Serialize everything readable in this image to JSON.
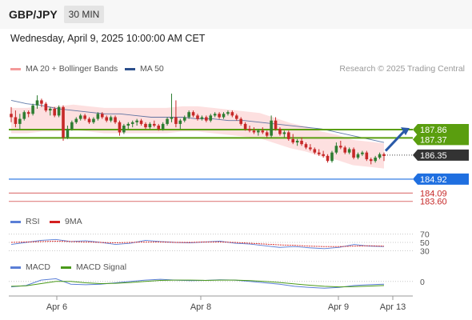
{
  "header": {
    "symbol": "GBP/JPY",
    "timeframe": "30 MIN"
  },
  "datetime": "Wednesday, April 9, 2025 10:00:00 AM CET",
  "legend": {
    "bollinger_label": "MA 20 + Bollinger Bands",
    "ma50_label": "MA 50",
    "rsi_label": "RSI",
    "rsi_ma_label": "9MA",
    "macd_label": "MACD",
    "macd_signal_label": "MACD Signal",
    "copyright": "Research © 2025 Trading Central"
  },
  "colors": {
    "bollinger": "#f49a9a",
    "ma50": "#2c4f8c",
    "candle_up": "#2e7d32",
    "candle_down": "#c62828",
    "resistance": "#5a9e0f",
    "support_blue": "#1f6fe0",
    "support_red": "#e08080",
    "rsi": "#5b7fd6",
    "rsi_ma": "#d42020",
    "macd": "#5b7fd6",
    "macd_signal": "#4a9a1a"
  },
  "chart_data": {
    "type": "candlestick",
    "x_tick_labels": [
      "Apr 6",
      "Apr 8",
      "Apr 9",
      "Apr 13"
    ],
    "price_ylim": [
      183.3,
      191.0
    ],
    "levels": [
      {
        "value": 187.86,
        "label": "187.86",
        "kind": "resistance"
      },
      {
        "value": 187.37,
        "label": "187.37",
        "kind": "resistance"
      },
      {
        "value": 186.35,
        "label": "186.35",
        "kind": "current"
      },
      {
        "value": 184.92,
        "label": "184.92",
        "kind": "support"
      },
      {
        "value": 184.09,
        "label": "184.09",
        "kind": "support"
      },
      {
        "value": 183.6,
        "label": "183.60",
        "kind": "support"
      }
    ],
    "candles": [
      [
        188.8,
        189.2,
        188.3,
        188.6
      ],
      [
        188.6,
        189.0,
        188.0,
        188.2
      ],
      [
        188.2,
        188.8,
        187.9,
        188.5
      ],
      [
        188.5,
        189.0,
        188.4,
        188.9
      ],
      [
        188.9,
        189.0,
        188.6,
        188.8
      ],
      [
        188.8,
        189.4,
        188.7,
        189.3
      ],
      [
        189.3,
        189.9,
        189.1,
        189.6
      ],
      [
        189.6,
        189.7,
        189.2,
        189.4
      ],
      [
        189.4,
        189.5,
        188.9,
        189.0
      ],
      [
        189.0,
        189.2,
        188.7,
        189.1
      ],
      [
        189.1,
        189.2,
        188.6,
        188.7
      ],
      [
        188.7,
        189.3,
        188.6,
        189.2
      ],
      [
        189.2,
        189.3,
        187.2,
        187.4
      ],
      [
        187.4,
        188.1,
        187.3,
        187.9
      ],
      [
        187.9,
        188.4,
        187.8,
        188.3
      ],
      [
        188.3,
        188.6,
        188.2,
        188.5
      ],
      [
        188.5,
        188.8,
        188.4,
        188.7
      ],
      [
        188.7,
        188.8,
        188.4,
        188.5
      ],
      [
        188.5,
        188.6,
        188.2,
        188.3
      ],
      [
        188.3,
        188.6,
        188.2,
        188.5
      ],
      [
        188.5,
        188.9,
        188.4,
        188.8
      ],
      [
        188.8,
        188.9,
        188.5,
        188.6
      ],
      [
        188.6,
        188.7,
        188.3,
        188.4
      ],
      [
        188.4,
        188.7,
        188.3,
        188.6
      ],
      [
        188.6,
        188.7,
        188.2,
        188.3
      ],
      [
        188.3,
        188.4,
        187.5,
        187.7
      ],
      [
        187.7,
        188.2,
        187.6,
        188.1
      ],
      [
        188.1,
        188.3,
        187.9,
        188.2
      ],
      [
        188.2,
        188.4,
        188.0,
        188.3
      ],
      [
        188.3,
        188.5,
        188.1,
        188.4
      ],
      [
        188.4,
        188.5,
        188.1,
        188.2
      ],
      [
        188.2,
        188.3,
        187.9,
        188.0
      ],
      [
        188.0,
        188.3,
        187.9,
        188.2
      ],
      [
        188.2,
        188.4,
        188.0,
        188.1
      ],
      [
        188.1,
        188.2,
        187.8,
        187.9
      ],
      [
        187.9,
        188.3,
        187.8,
        188.2
      ],
      [
        188.2,
        188.6,
        188.1,
        188.5
      ],
      [
        188.5,
        190.0,
        188.3,
        188.6
      ],
      [
        188.6,
        189.6,
        188.0,
        188.2
      ],
      [
        188.2,
        188.5,
        187.9,
        188.4
      ],
      [
        188.4,
        188.7,
        188.3,
        188.6
      ],
      [
        188.6,
        189.0,
        188.5,
        188.9
      ],
      [
        188.9,
        189.0,
        188.6,
        188.7
      ],
      [
        188.7,
        188.8,
        188.4,
        188.5
      ],
      [
        188.5,
        188.7,
        188.4,
        188.6
      ],
      [
        188.6,
        188.7,
        188.3,
        188.4
      ],
      [
        188.4,
        188.8,
        188.3,
        188.7
      ],
      [
        188.7,
        188.9,
        188.6,
        188.8
      ],
      [
        188.8,
        188.9,
        188.5,
        188.6
      ],
      [
        188.6,
        188.9,
        188.5,
        188.8
      ],
      [
        188.8,
        189.0,
        188.7,
        188.9
      ],
      [
        188.9,
        189.0,
        188.6,
        188.7
      ],
      [
        188.7,
        188.8,
        188.4,
        188.5
      ],
      [
        188.5,
        188.6,
        188.1,
        188.2
      ],
      [
        188.2,
        188.3,
        187.8,
        187.9
      ],
      [
        187.9,
        188.1,
        187.7,
        187.8
      ],
      [
        187.8,
        188.0,
        187.6,
        187.7
      ],
      [
        187.7,
        187.9,
        187.5,
        187.8
      ],
      [
        187.8,
        188.0,
        187.6,
        187.7
      ],
      [
        187.7,
        187.8,
        187.4,
        187.5
      ],
      [
        187.5,
        188.7,
        187.4,
        188.4
      ],
      [
        188.4,
        188.6,
        187.8,
        187.9
      ],
      [
        187.9,
        188.0,
        187.5,
        187.6
      ],
      [
        187.6,
        187.8,
        187.4,
        187.7
      ],
      [
        187.7,
        187.8,
        187.2,
        187.3
      ],
      [
        187.3,
        187.6,
        187.0,
        187.1
      ],
      [
        187.1,
        187.3,
        186.9,
        187.2
      ],
      [
        187.2,
        187.4,
        186.9,
        187.0
      ],
      [
        187.0,
        187.1,
        186.7,
        186.8
      ],
      [
        186.8,
        187.0,
        186.6,
        186.7
      ],
      [
        186.7,
        186.8,
        186.4,
        186.5
      ],
      [
        186.5,
        186.7,
        186.3,
        186.4
      ],
      [
        186.4,
        186.6,
        186.2,
        186.3
      ],
      [
        186.3,
        186.4,
        185.9,
        186.0
      ],
      [
        186.0,
        186.6,
        185.9,
        186.5
      ],
      [
        186.5,
        187.1,
        186.4,
        186.9
      ],
      [
        186.9,
        187.2,
        186.7,
        186.8
      ],
      [
        186.8,
        186.9,
        186.4,
        186.5
      ],
      [
        186.5,
        186.8,
        186.4,
        186.7
      ],
      [
        186.7,
        186.8,
        186.1,
        186.2
      ],
      [
        186.2,
        186.5,
        186.1,
        186.4
      ],
      [
        186.4,
        186.6,
        186.3,
        186.5
      ],
      [
        186.5,
        186.6,
        186.0,
        186.1
      ],
      [
        186.1,
        186.2,
        185.8,
        186.0
      ],
      [
        186.0,
        186.3,
        185.9,
        186.2
      ],
      [
        186.2,
        186.5,
        186.1,
        186.4
      ],
      [
        186.4,
        186.5,
        186.0,
        186.3
      ]
    ],
    "bollinger_ma20": [
      188.4,
      188.4,
      188.5,
      188.5,
      188.6,
      188.5,
      188.4,
      188.4,
      188.4,
      188.4,
      188.4,
      188.5,
      188.5,
      188.4,
      188.3,
      188.2,
      188.1,
      187.8,
      187.5,
      187.3,
      187.0,
      186.8,
      186.5,
      186.4,
      186.3
    ],
    "ma50": [
      189.6,
      189.4,
      189.3,
      189.1,
      189.0,
      188.9,
      188.8,
      188.8,
      188.7,
      188.6,
      188.6,
      188.6,
      188.5,
      188.5,
      188.4,
      188.4,
      188.3,
      188.2,
      188.1,
      188.0,
      187.9,
      187.7,
      187.5,
      187.3,
      187.1
    ],
    "rsi_axis_labels": [
      "70",
      "50",
      "30"
    ],
    "rsi": [
      45,
      50,
      55,
      57,
      52,
      54,
      50,
      45,
      48,
      55,
      52,
      50,
      49,
      51,
      53,
      48,
      46,
      42,
      38,
      40,
      37,
      35,
      38,
      45,
      41,
      40
    ],
    "rsi_ma": [
      50,
      51,
      52,
      53,
      52,
      51,
      50,
      49,
      50,
      51,
      51,
      50,
      50,
      51,
      51,
      50,
      48,
      46,
      44,
      43,
      41,
      40,
      40,
      41,
      42,
      41
    ],
    "macd_axis_label": "0",
    "macd": [
      -0.2,
      -0.15,
      0.05,
      0.1,
      -0.1,
      -0.12,
      -0.1,
      -0.05,
      0.0,
      0.05,
      0.08,
      0.05,
      0.03,
      0.04,
      0.06,
      0.05,
      0.0,
      -0.05,
      -0.1,
      -0.18,
      -0.22,
      -0.25,
      -0.22,
      -0.15,
      -0.12,
      -0.1
    ],
    "macd_signal": [
      -0.18,
      -0.16,
      -0.08,
      0.0,
      0.0,
      -0.05,
      -0.08,
      -0.07,
      -0.04,
      0.0,
      0.04,
      0.05,
      0.05,
      0.04,
      0.05,
      0.05,
      0.03,
      0.0,
      -0.04,
      -0.09,
      -0.14,
      -0.18,
      -0.2,
      -0.19,
      -0.17,
      -0.15
    ]
  }
}
